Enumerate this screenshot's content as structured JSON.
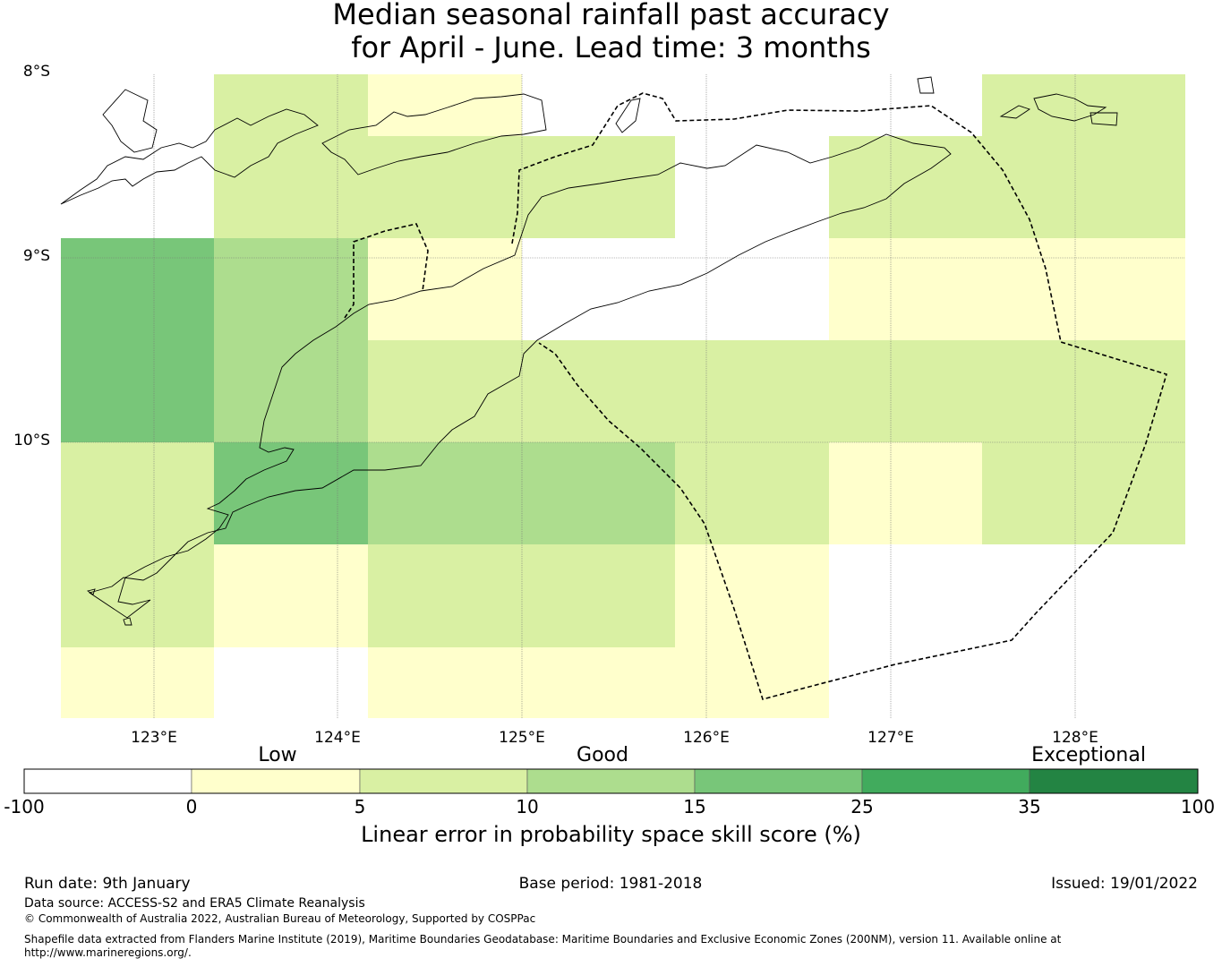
{
  "title": {
    "line1": "Median seasonal rainfall past accuracy",
    "line2": "for April - June. Lead time: 3 months"
  },
  "map": {
    "lat_labels": [
      "8°S",
      "9°S",
      "10°S"
    ],
    "lon_labels": [
      "123°E",
      "124°E",
      "125°E",
      "126°E",
      "127°E",
      "128°E"
    ],
    "grid_rows": [
      [
        "none",
        "b5_10",
        "b0_5",
        "none",
        "none",
        "none",
        "b5_10"
      ],
      [
        "none",
        "b5_10",
        "b5_10",
        "b5_10",
        "none",
        "b5_10",
        "b5_10"
      ],
      [
        "b15_25",
        "b10_15",
        "b0_5",
        "none",
        "none",
        "b0_5",
        "b0_5"
      ],
      [
        "b15_25",
        "b10_15",
        "b5_10",
        "b5_10",
        "b5_10",
        "b5_10",
        "b5_10"
      ],
      [
        "b5_10",
        "b15_25",
        "b10_15",
        "b10_15",
        "b5_10",
        "b0_5",
        "b5_10"
      ],
      [
        "b5_10",
        "b0_5",
        "b5_10",
        "b5_10",
        "b0_5",
        "none",
        "none"
      ],
      [
        "b0_5",
        "none",
        "b0_5",
        "b0_5",
        "b0_5",
        "none",
        "none"
      ]
    ]
  },
  "colorbar": {
    "categories": [
      "Low",
      "Good",
      "Exceptional"
    ],
    "ticks": [
      "-100",
      "0",
      "5",
      "10",
      "15",
      "25",
      "35",
      "100"
    ],
    "colors": [
      "#ffffff",
      "#ffffcc",
      "#d9f0a3",
      "#addd8e",
      "#78c679",
      "#41ab5d",
      "#238443"
    ],
    "label": "Linear error in probability space skill score (%)"
  },
  "footer": {
    "run_date": "Run date: 9th January",
    "base_period": "Base period: 1981-2018",
    "issued": "Issued: 19/01/2022",
    "data_source": "Data source: ACCESS-S2 and ERA5 Climate Reanalysis",
    "copyright": "© Commonwealth of Australia 2022, Australian Bureau of Meteorology, Supported by COSPPac",
    "shapefile_1": "Shapefile data extracted from Flanders Marine Institute (2019), Maritime Boundaries Geodatabase: Maritime Boundaries and Exclusive Economic Zones (200NM), version 11. Available online at",
    "shapefile_2": "http://www.marineregions.org/."
  }
}
